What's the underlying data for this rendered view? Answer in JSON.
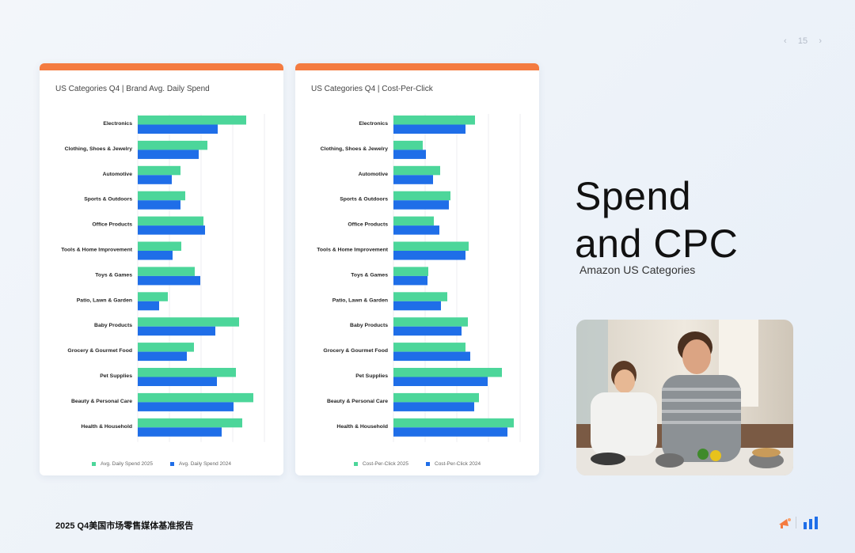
{
  "page": {
    "page_number": "15",
    "prev_icon": "chevron-left-icon",
    "next_icon": "chevron-right-icon",
    "footer": "2025 Q4美国市场零售媒体基准报告",
    "headline_line1": "Spend",
    "headline_line2": "and CPC",
    "subtitle": "Amazon US Categories",
    "photo_description_icon": "photo-icon"
  },
  "colors": {
    "accent_bar": "#f47b40",
    "series_2025": "#4cd69a",
    "series_2024": "#1f6ee8",
    "grid": "#eceef2"
  },
  "chart_data": [
    {
      "type": "bar",
      "orientation": "horizontal",
      "title": "US Categories Q4 |  Brand Avg. Daily Spend",
      "categories": [
        "Electronics",
        "Clothing, Shoes & Jewelry",
        "Automotive",
        "Sports & Outdoors",
        "Office Products",
        "Tools & Home Improvement",
        "Toys & Games",
        "Patio, Lawn & Garden",
        "Baby Products",
        "Grocery & Gourmet Food",
        "Pet Supplies",
        "Beauty & Personal Care",
        "Health & Household"
      ],
      "series": [
        {
          "name": "Avg. Daily Spend 2025",
          "values": [
            137,
            88,
            54,
            60,
            83,
            55,
            72,
            38,
            128,
            71,
            124,
            146,
            132
          ]
        },
        {
          "name": "Avg. Daily Spend 2024",
          "values": [
            101,
            77,
            43,
            54,
            85,
            44,
            79,
            27,
            98,
            62,
            100,
            121,
            106
          ]
        }
      ],
      "xlim": [
        0,
        160
      ],
      "grid": true,
      "legend": "bottom-center"
    },
    {
      "type": "bar",
      "orientation": "horizontal",
      "title": "US Categories Q4 |  Cost-Per-Click",
      "categories": [
        "Electronics",
        "Clothing, Shoes & Jewelry",
        "Automotive",
        "Sports & Outdoors",
        "Office Products",
        "Tools & Home Improvement",
        "Toys & Games",
        "Patio, Lawn & Garden",
        "Baby Products",
        "Grocery & Gourmet Food",
        "Pet Supplies",
        "Beauty & Personal Care",
        "Health & Household"
      ],
      "series": [
        {
          "name": "Cost-Per-Click 2025",
          "values": [
            103,
            37,
            59,
            72,
            51,
            95,
            44,
            68,
            94,
            91,
            137,
            108,
            152
          ]
        },
        {
          "name": "Cost-Per-Click 2024",
          "values": [
            91,
            41,
            50,
            70,
            58,
            91,
            43,
            60,
            86,
            97,
            119,
            102,
            144
          ]
        }
      ],
      "xlim": [
        0,
        160
      ],
      "grid": true,
      "legend": "bottom-center"
    }
  ]
}
